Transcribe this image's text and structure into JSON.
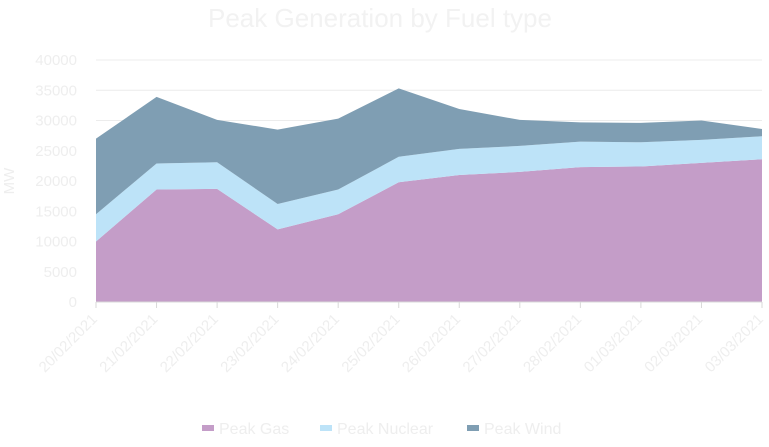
{
  "chart_data": {
    "type": "area",
    "stacked": true,
    "title": "Peak Generation by Fuel type",
    "xlabel": "",
    "ylabel": "MW",
    "ylim": [
      0,
      40000
    ],
    "yticks": [
      0,
      5000,
      10000,
      15000,
      20000,
      25000,
      30000,
      35000,
      40000
    ],
    "grid": true,
    "legend_position": "bottom",
    "categories": [
      "20/02/2021",
      "21/02/2021",
      "22/02/2021",
      "23/02/2021",
      "24/02/2021",
      "25/02/2021",
      "26/02/2021",
      "27/02/2021",
      "28/02/2021",
      "01/03/2021",
      "02/03/2021",
      "03/03/2021"
    ],
    "series": [
      {
        "name": "Peak Gas",
        "color": "#c49dc8",
        "values": [
          10000,
          18600,
          18700,
          12000,
          14500,
          19800,
          21000,
          21500,
          22300,
          22400,
          23000,
          23600
        ]
      },
      {
        "name": "Peak Nuclear",
        "color": "#bde3f8",
        "values": [
          4500,
          4300,
          4400,
          4200,
          4100,
          4200,
          4300,
          4300,
          4200,
          4000,
          3800,
          3800
        ]
      },
      {
        "name": "Peak Wind",
        "color": "#7f9eb3",
        "values": [
          12500,
          11000,
          7000,
          12300,
          11700,
          11300,
          6600,
          4300,
          3200,
          3200,
          3200,
          1200
        ]
      }
    ]
  }
}
